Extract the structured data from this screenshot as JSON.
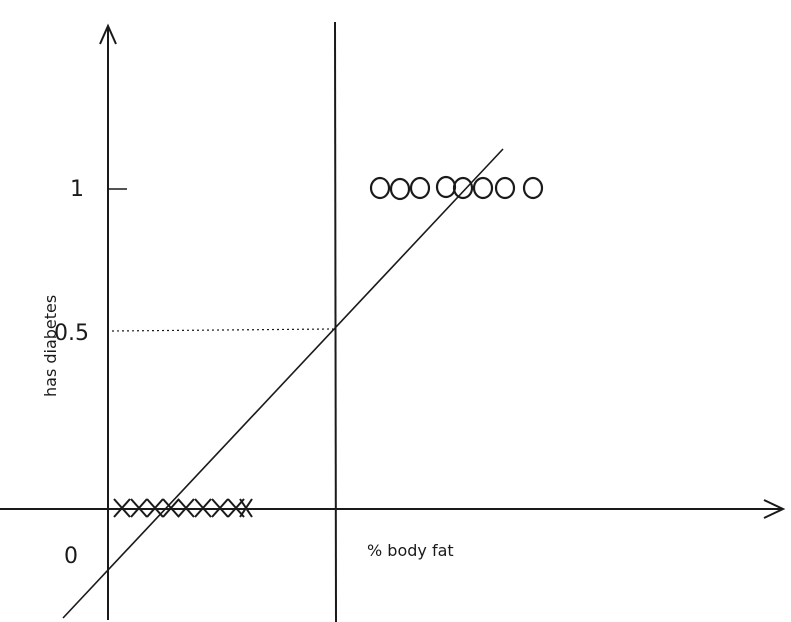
{
  "diagram": {
    "y_axis_label": "has diabetes",
    "x_axis_label": "% body fat",
    "y_ticks": [
      {
        "label": "1",
        "value": 1
      },
      {
        "label": "0.5",
        "value": 0.5
      },
      {
        "label": "0",
        "value": 0
      }
    ],
    "threshold_probability": 0.5,
    "positive_class": {
      "marker": "O",
      "value": 1,
      "count": 8
    },
    "negative_class": {
      "marker": "X",
      "value": 0,
      "count": 9
    },
    "colors": {
      "ink": "#1a1a1a",
      "background": "#ffffff"
    }
  }
}
